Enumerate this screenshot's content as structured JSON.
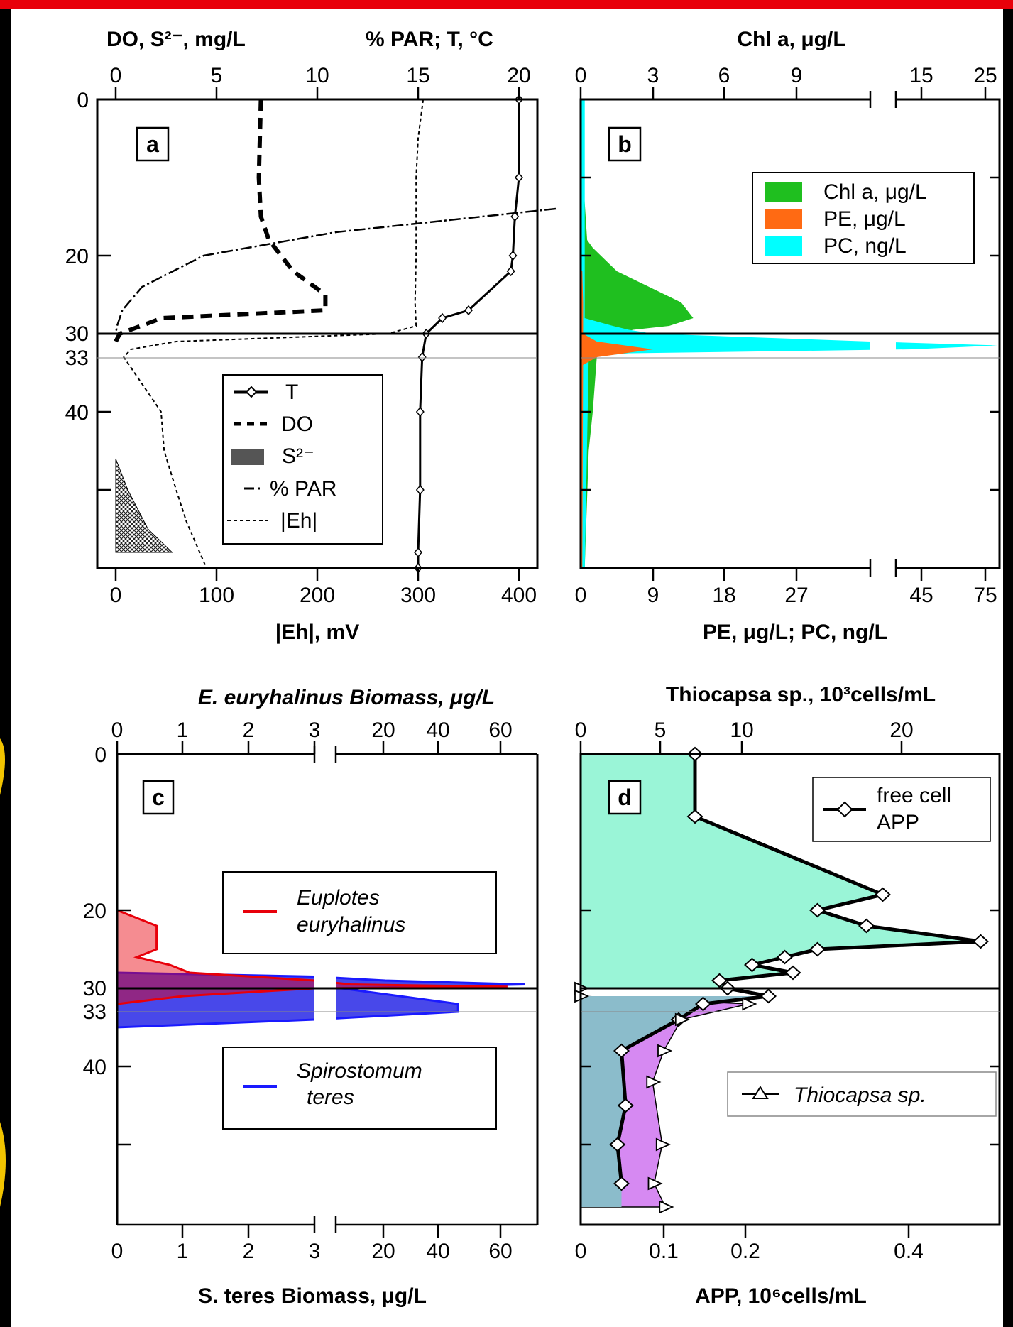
{
  "page": {
    "frame_color": "#e8000a",
    "side_color": "#000000",
    "side_glyph_color": "#f2c400"
  },
  "panels": {
    "a": {
      "label": "a",
      "top_title_left": "DO, S²⁻, mg/L",
      "top_title_right": "% PAR; T, °C",
      "bottom_title": "|Eh|, mV",
      "top_ticks": [
        "0",
        "5",
        "10",
        "15",
        "20"
      ],
      "bottom_ticks": [
        "0",
        "100",
        "200",
        "300",
        "400"
      ],
      "y_ticks": [
        "0",
        "20",
        "30",
        "33",
        "40"
      ],
      "legend": [
        "T",
        "DO",
        "S²⁻",
        "% PAR",
        "|Eh|"
      ]
    },
    "b": {
      "label": "b",
      "top_title": "Chl a, μg/L",
      "bottom_title": "PE, μg/L;  PC, ng/L",
      "top_ticks": [
        "0",
        "3",
        "6",
        "9",
        "15",
        "25"
      ],
      "bottom_ticks": [
        "0",
        "9",
        "18",
        "27",
        "45",
        "75"
      ],
      "legend": [
        "Chl a, μg/L",
        "PE, μg/L",
        "PC, ng/L"
      ]
    },
    "c": {
      "label": "c",
      "top_title": "E. euryhalinus Biomass, μg/L",
      "bottom_title": "S. teres Biomass, μg/L",
      "top_ticks": [
        "0",
        "1",
        "2",
        "3",
        "20",
        "40",
        "60"
      ],
      "bottom_ticks": [
        "0",
        "1",
        "2",
        "3",
        "20",
        "40",
        "60"
      ],
      "y_ticks": [
        "0",
        "20",
        "30",
        "33",
        "40"
      ],
      "legend": [
        "Euplotes",
        "euryhalinus",
        "Spirostomum",
        "teres"
      ]
    },
    "d": {
      "label": "d",
      "top_title": "Thiocapsa sp., 10³cells/mL",
      "bottom_title": "APP, 10⁶cells/mL",
      "top_ticks": [
        "0",
        "5",
        "10",
        "20"
      ],
      "bottom_ticks": [
        "0",
        "0.1",
        "0.2",
        "0.4"
      ],
      "legend": [
        "free cell",
        "APP",
        "Thiocapsa sp."
      ]
    }
  },
  "chart_data": [
    {
      "panel": "a",
      "type": "line",
      "y_axis": "depth",
      "ylim": [
        0,
        60
      ],
      "y_ticks": [
        0,
        20,
        30,
        33,
        40
      ],
      "series": [
        {
          "name": "T",
          "x": [
            20,
            20,
            19.8,
            19.7,
            19.6,
            17.5,
            16.2,
            15.4,
            15.2,
            15.1,
            15.1,
            15,
            15
          ],
          "y": [
            0,
            10,
            15,
            20,
            22,
            27,
            28,
            30,
            33,
            40,
            50,
            58,
            60
          ]
        },
        {
          "name": "DO",
          "x": [
            7.2,
            7.1,
            7.2,
            7.6,
            8.8,
            10.4,
            10.4,
            2.3,
            0.2,
            0
          ],
          "y": [
            0,
            10,
            15,
            18,
            22,
            25,
            27,
            28,
            30,
            31
          ]
        },
        {
          "name": "S²⁻",
          "x": [
            0,
            0.6,
            1.6,
            2.8,
            0
          ],
          "y": [
            46,
            50,
            55,
            58,
            58
          ]
        },
        {
          "name": "% PAR",
          "x": [
            100,
            50,
            20,
            6,
            1.5,
            0.3,
            0
          ],
          "y": [
            14,
            17,
            20,
            24,
            27,
            29,
            30
          ]
        },
        {
          "name": "|Eh|",
          "x": [
            305,
            300,
            298,
            298,
            297,
            298,
            270,
            60,
            15,
            8,
            45,
            48,
            60,
            70,
            80,
            90
          ],
          "y": [
            0,
            5,
            10,
            20,
            26,
            29,
            30,
            31,
            32,
            33,
            40,
            45,
            50,
            54,
            57,
            60
          ]
        }
      ]
    },
    {
      "panel": "b",
      "type": "area",
      "y_axis": "depth",
      "series": [
        {
          "name": "Chl a, μg/L",
          "x": [
            0.1,
            0.3,
            0.8,
            1.5,
            4.5,
            8.5,
            12.5,
            14,
            11,
            6.5,
            5,
            2,
            2,
            1.5,
            1,
            0.5
          ],
          "y": [
            0,
            10,
            18,
            19,
            22,
            24,
            26,
            28,
            29,
            29.5,
            30,
            31,
            33,
            40,
            45,
            60
          ]
        },
        {
          "name": "PE, μg/L",
          "x": [
            0.2,
            0.3,
            0.3,
            2,
            9,
            2,
            0.3,
            0.2
          ],
          "y": [
            22,
            26,
            30,
            31,
            32,
            33,
            34,
            60
          ]
        },
        {
          "name": "PC, ng/L",
          "x": [
            0.5,
            0.5,
            4,
            6,
            9,
            36,
            62,
            40,
            6,
            1,
            0.5
          ],
          "y": [
            0,
            28,
            29,
            29.5,
            30,
            31,
            31.5,
            32,
            32.5,
            33,
            60
          ]
        }
      ]
    },
    {
      "panel": "c",
      "type": "area",
      "y_axis": "depth",
      "series": [
        {
          "name": "Euplotes euryhalinus",
          "x": [
            0,
            0.6,
            0.6,
            0.3,
            0.8,
            1.1,
            3,
            8,
            62,
            3,
            1,
            0
          ],
          "y": [
            20,
            22,
            25,
            26,
            27,
            28,
            29,
            29.5,
            29.8,
            30,
            31,
            32
          ]
        },
        {
          "name": "Spirostomum teres",
          "x": [
            0,
            3,
            20,
            68,
            5,
            25,
            45,
            45,
            3,
            0
          ],
          "y": [
            28,
            28.5,
            29,
            29.5,
            30,
            31,
            32,
            33,
            34,
            35
          ]
        }
      ]
    },
    {
      "panel": "d",
      "type": "line",
      "y_axis": "depth",
      "series": [
        {
          "name": "free cell APP",
          "x": [
            0.14,
            0.14,
            0.37,
            0.29,
            0.35,
            0.49,
            0.29,
            0.25,
            0.21,
            0.26,
            0.17,
            0.18,
            0.23,
            0.15,
            0.12,
            0.05,
            0.055,
            0.045,
            0.05
          ],
          "y": [
            0,
            8,
            18,
            20,
            22,
            24,
            25,
            26,
            27,
            28,
            29,
            30,
            31,
            32,
            34,
            38,
            45,
            50,
            55
          ]
        },
        {
          "name": "Thiocapsa sp.",
          "x": [
            0,
            0,
            10.5,
            6.3,
            5.2,
            4.5,
            5.1,
            4.6,
            5.3
          ],
          "y": [
            30,
            31,
            32,
            34,
            38,
            42,
            50,
            55,
            58
          ]
        }
      ]
    }
  ]
}
